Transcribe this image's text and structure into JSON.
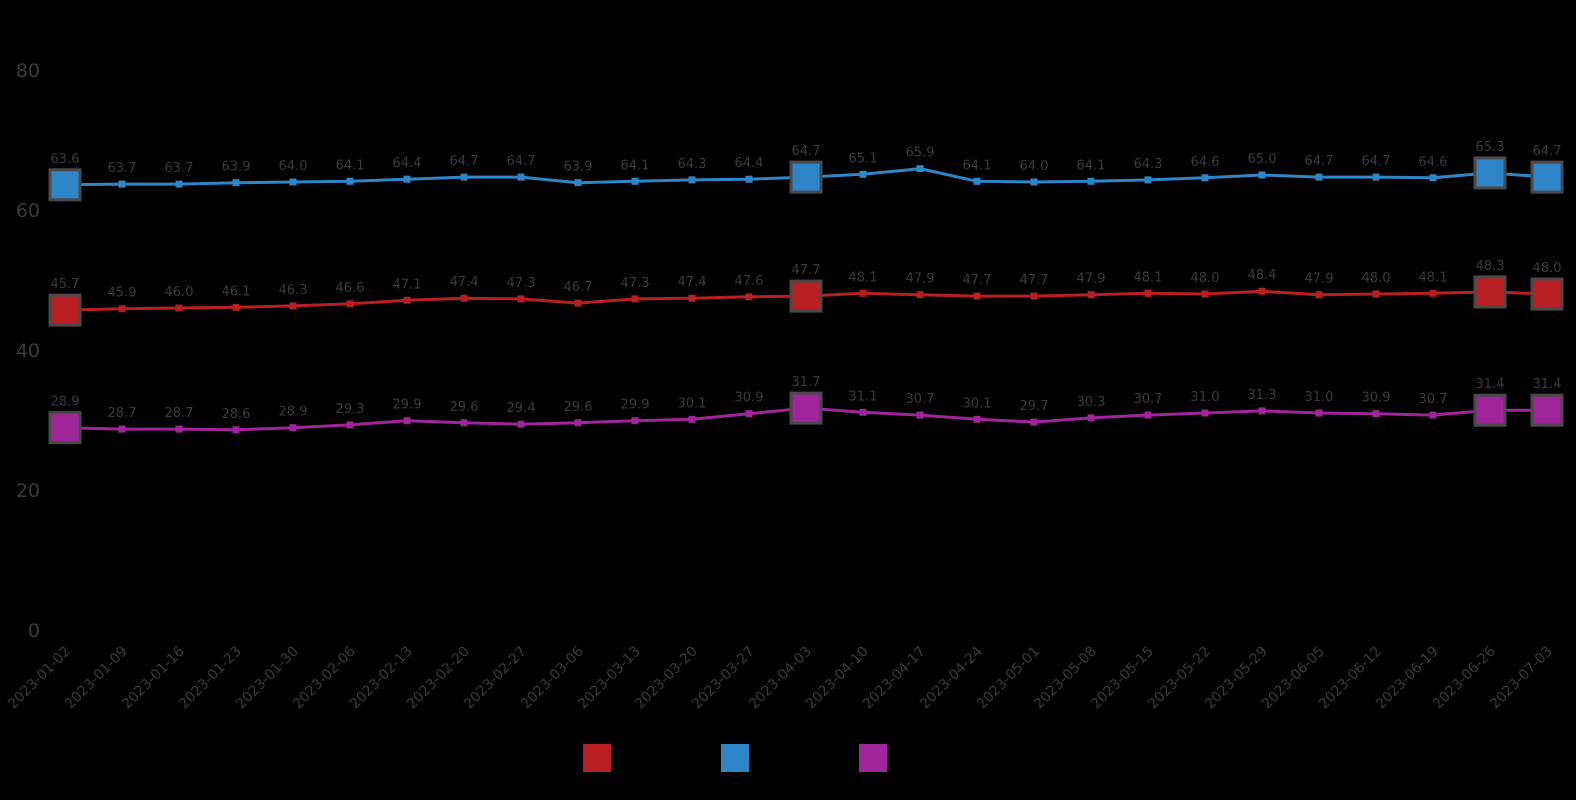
{
  "chart_data": {
    "type": "line",
    "title": "",
    "xlabel": "",
    "ylabel": "",
    "background_color": "#000000",
    "text_color": "#3a3a3a",
    "grid": false,
    "legend_position": "bottom",
    "ylim": [
      0,
      80
    ],
    "y_tick_labels": [
      "0",
      "20",
      "40",
      "60",
      "80"
    ],
    "y_ticks": [
      0,
      20,
      40,
      60,
      80
    ],
    "x": [
      "2023-01-02",
      "2023-01-09",
      "2023-01-16",
      "2023-01-23",
      "2023-01-30",
      "2023-02-06",
      "2023-02-13",
      "2023-02-20",
      "2023-02-27",
      "2023-03-06",
      "2023-03-13",
      "2023-03-20",
      "2023-03-27",
      "2023-04-03",
      "2023-04-10",
      "2023-04-17",
      "2023-04-24",
      "2023-05-01",
      "2023-05-08",
      "2023-05-15",
      "2023-05-22",
      "2023-05-29",
      "2023-06-05",
      "2023-06-12",
      "2023-06-19",
      "2023-06-26",
      "2023-07-03"
    ],
    "emphasized_indices": [
      0,
      13,
      25,
      26
    ],
    "series": [
      {
        "name": "red-series",
        "legend_label": "",
        "color": "#b81e22",
        "values": [
          45.7,
          45.9,
          46.0,
          46.1,
          46.3,
          46.6,
          47.1,
          47.4,
          47.3,
          46.7,
          47.3,
          47.4,
          47.6,
          47.7,
          48.1,
          47.9,
          47.7,
          47.7,
          47.9,
          48.1,
          48.0,
          48.4,
          47.9,
          48.0,
          48.1,
          48.3,
          48.0
        ]
      },
      {
        "name": "blue-series",
        "legend_label": "",
        "color": "#2e86c8",
        "values": [
          63.6,
          63.7,
          63.7,
          63.9,
          64.0,
          64.1,
          64.4,
          64.7,
          64.7,
          63.9,
          64.1,
          64.3,
          64.4,
          64.7,
          65.1,
          65.9,
          64.1,
          64.0,
          64.1,
          64.3,
          64.6,
          65.0,
          64.7,
          64.7,
          64.6,
          65.3,
          64.7
        ]
      },
      {
        "name": "magenta-series",
        "legend_label": "",
        "color": "#a0259a",
        "values": [
          28.9,
          28.7,
          28.7,
          28.6,
          28.9,
          29.3,
          29.9,
          29.6,
          29.4,
          29.6,
          29.9,
          30.1,
          30.9,
          31.7,
          31.1,
          30.7,
          30.1,
          29.7,
          30.3,
          30.7,
          31.0,
          31.3,
          31.0,
          30.9,
          30.7,
          31.4,
          31.4
        ]
      }
    ],
    "marker_halo_color": "#4a4a4a",
    "point_label_color": "#3a3a3a"
  },
  "legend": {
    "items": [
      {
        "label": "",
        "color": "#b81e22"
      },
      {
        "label": "",
        "color": "#2e86c8"
      },
      {
        "label": "",
        "color": "#a0259a"
      }
    ]
  }
}
